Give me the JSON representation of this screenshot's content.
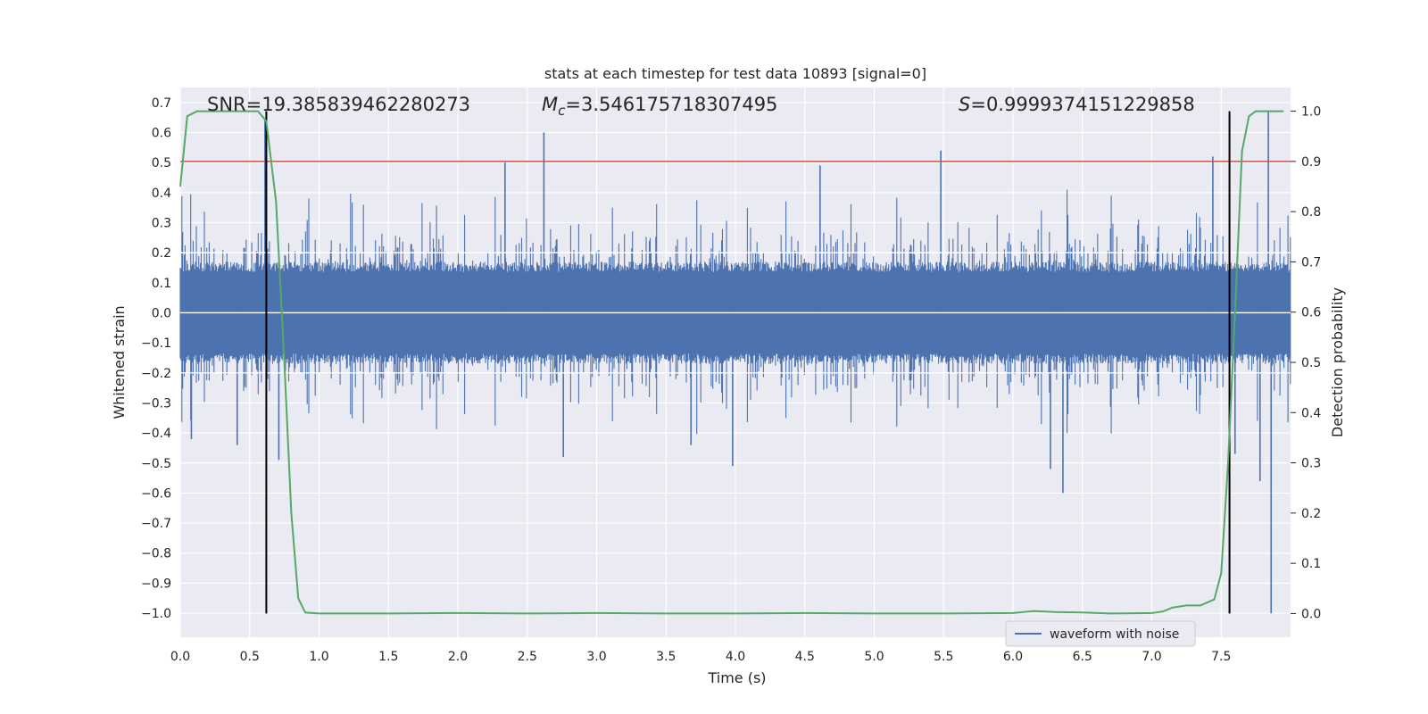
{
  "chart_data": {
    "type": "line",
    "title": "stats at each timestep for test data 10893 [signal=0]",
    "xlabel": "Time (s)",
    "ylabel": "Whitened strain",
    "y2label": "Detection probability",
    "xlim": [
      0.0,
      8.0
    ],
    "ylim": [
      -1.08,
      0.75
    ],
    "y2lim": [
      -0.0472,
      1.0472
    ],
    "x_ticks": [
      "0.0",
      "0.5",
      "1.0",
      "1.5",
      "2.0",
      "2.5",
      "3.0",
      "3.5",
      "4.0",
      "4.5",
      "5.0",
      "5.5",
      "6.0",
      "6.5",
      "7.0",
      "7.5"
    ],
    "y_ticks": [
      "0.7",
      "0.6",
      "0.5",
      "0.4",
      "0.3",
      "0.2",
      "0.1",
      "0.0",
      "−0.1",
      "−0.2",
      "−0.3",
      "−0.4",
      "−0.5",
      "−0.6",
      "−0.7",
      "−0.8",
      "−0.9",
      "−1.0"
    ],
    "y2_ticks": [
      "1.0",
      "0.9",
      "0.8",
      "0.7",
      "0.6",
      "0.5",
      "0.4",
      "0.3",
      "0.2",
      "0.1",
      "0.0"
    ],
    "grid": true,
    "legend": {
      "position": "lower-right",
      "entries": [
        "waveform with noise"
      ]
    },
    "annotations": {
      "snr": "SNR=19.385839462280273",
      "mc_symbol": "M",
      "mc_subscript": "c",
      "mc_value": "=3.546175718307495",
      "s_symbol": "S",
      "s_value": "=0.9999374151229858"
    },
    "threshold_y2": 0.9,
    "vertical_markers_x": [
      0.62,
      7.56
    ],
    "series": [
      {
        "name": "waveform with noise",
        "color": "#4c72b0",
        "kind": "noise",
        "x_range": [
          0.0,
          8.0
        ],
        "core_amplitude": 0.17,
        "spikes": [
          {
            "x": 0.08,
            "y": -0.42
          },
          {
            "x": 0.41,
            "y": -0.44
          },
          {
            "x": 0.61,
            "y": 0.64
          },
          {
            "x": 0.71,
            "y": -0.49
          },
          {
            "x": 2.34,
            "y": 0.5
          },
          {
            "x": 2.62,
            "y": 0.6
          },
          {
            "x": 2.76,
            "y": -0.48
          },
          {
            "x": 3.68,
            "y": -0.44
          },
          {
            "x": 3.98,
            "y": -0.51
          },
          {
            "x": 4.61,
            "y": 0.49
          },
          {
            "x": 5.48,
            "y": 0.54
          },
          {
            "x": 6.27,
            "y": -0.52
          },
          {
            "x": 6.36,
            "y": -0.6
          },
          {
            "x": 7.44,
            "y": 0.52
          },
          {
            "x": 7.6,
            "y": -0.47
          },
          {
            "x": 7.84,
            "y": 0.67
          },
          {
            "x": 7.86,
            "y": -1.0
          },
          {
            "x": 7.78,
            "y": -0.56
          }
        ]
      },
      {
        "name": "detection probability",
        "color": "#55a868",
        "axis": "right",
        "x": [
          0.0,
          0.05,
          0.12,
          0.2,
          0.3,
          0.4,
          0.5,
          0.56,
          0.62,
          0.69,
          0.75,
          0.8,
          0.85,
          0.9,
          1.0,
          1.5,
          2.0,
          2.5,
          3.0,
          3.5,
          4.0,
          4.5,
          5.0,
          5.5,
          6.0,
          6.15,
          6.3,
          6.5,
          6.7,
          7.0,
          7.08,
          7.15,
          7.25,
          7.35,
          7.45,
          7.5,
          7.55,
          7.6,
          7.65,
          7.7,
          7.75,
          7.8,
          7.9,
          7.95
        ],
        "y": [
          0.85,
          0.99,
          1.0,
          1.0,
          1.0,
          1.0,
          1.0,
          1.0,
          0.98,
          0.82,
          0.5,
          0.2,
          0.03,
          0.002,
          0.0,
          0.0,
          0.001,
          0.0,
          0.001,
          0.0,
          0.0,
          0.001,
          0.0,
          0.0,
          0.001,
          0.005,
          0.003,
          0.002,
          0.0,
          0.001,
          0.004,
          0.012,
          0.016,
          0.016,
          0.028,
          0.08,
          0.3,
          0.6,
          0.92,
          0.99,
          1.0,
          1.0,
          1.0,
          1.0
        ]
      }
    ]
  }
}
